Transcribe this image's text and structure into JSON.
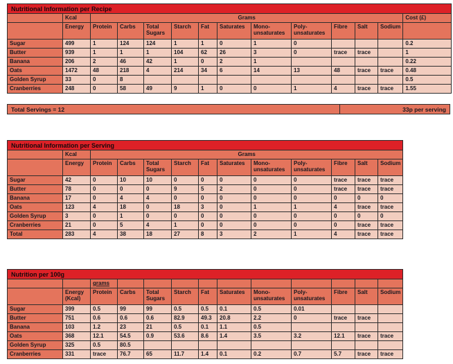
{
  "colors": {
    "title_bar": "#dd2127",
    "header_cell": "#e4745c",
    "data_cell": "#f2cdbf",
    "grid_border": "#2d2d2d",
    "page_bg": "#ffffff"
  },
  "tables": [
    {
      "title": "Nutritional Information per Recipe",
      "kcal_label": "Kcal",
      "grams_label": "Grams",
      "grams_underline": false,
      "cost_label": "Cost (£)",
      "columns": [
        "Energy",
        "Protein",
        "Carbs",
        "Total Sugars",
        "Starch",
        "Fat",
        "Saturates",
        "Mono-unsaturates",
        "Poly-unsaturates",
        "Fibre",
        "Salt",
        "Sodium"
      ],
      "rows": [
        {
          "label": "Sugar",
          "values": [
            "499",
            "1",
            "124",
            "124",
            "1",
            "1",
            "0",
            "1",
            "0",
            "",
            "",
            "",
            "0.2"
          ]
        },
        {
          "label": "Butter",
          "values": [
            "939",
            "1",
            "1",
            "1",
            "104",
            "62",
            "26",
            "3",
            "0",
            "trace",
            "trace",
            "",
            "1"
          ]
        },
        {
          "label": "Banana",
          "values": [
            "206",
            "2",
            "46",
            "42",
            "1",
            "0",
            "2",
            "1",
            "",
            "",
            "",
            "",
            "0.22"
          ]
        },
        {
          "label": "Oats",
          "values": [
            "1472",
            "48",
            "218",
            "4",
            "214",
            "34",
            "6",
            "14",
            "13",
            "48",
            "trace",
            "trace",
            "0.48"
          ]
        },
        {
          "label": "Golden Syrup",
          "values": [
            "33",
            "0",
            "8",
            "",
            "",
            "",
            "",
            "",
            "",
            "",
            "",
            "",
            "0.5"
          ]
        },
        {
          "label": "Cranberries",
          "values": [
            "248",
            "0",
            "58",
            "49",
            "9",
            "1",
            "0",
            "0",
            "1",
            "4",
            "trace",
            "trace",
            "1.55"
          ]
        }
      ]
    },
    {
      "title": "Nutritional Information per Serving",
      "kcal_label": "Kcal",
      "grams_label": "Grams",
      "grams_underline": false,
      "cost_label": null,
      "columns": [
        "Energy",
        "Protein",
        "Carbs",
        "Total Sugars",
        "Starch",
        "Fat",
        "Saturates",
        "Mono-unsaturates",
        "Poly-unsaturates",
        "Fibre",
        "Salt",
        "Sodium"
      ],
      "rows": [
        {
          "label": "Sugar",
          "values": [
            "42",
            "0",
            "10",
            "10",
            "0",
            "0",
            "0",
            "0",
            "0",
            "trace",
            "trace",
            "trace"
          ]
        },
        {
          "label": "Butter",
          "values": [
            "78",
            "0",
            "0",
            "0",
            "9",
            "5",
            "2",
            "0",
            "0",
            "trace",
            "trace",
            "trace"
          ]
        },
        {
          "label": "Banana",
          "values": [
            "17",
            "0",
            "4",
            "4",
            "0",
            "0",
            "0",
            "0",
            "0",
            "0",
            "0",
            "0"
          ]
        },
        {
          "label": "Oats",
          "values": [
            "123",
            "4",
            "18",
            "0",
            "18",
            "3",
            "0",
            "1",
            "1",
            "4",
            "trace",
            "trace"
          ]
        },
        {
          "label": "Golden Syrup",
          "values": [
            "3",
            "0",
            "1",
            "0",
            "0",
            "0",
            "0",
            "0",
            "0",
            "0",
            "0",
            "0"
          ]
        },
        {
          "label": "Cranberries",
          "values": [
            "21",
            "0",
            "5",
            "4",
            "1",
            "0",
            "0",
            "0",
            "0",
            "0",
            "trace",
            "trace"
          ]
        },
        {
          "label": "Total",
          "values": [
            "283",
            "4",
            "38",
            "18",
            "27",
            "8",
            "3",
            "2",
            "1",
            "4",
            "trace",
            "trace"
          ]
        }
      ]
    },
    {
      "title": "Nutrition per 100g",
      "kcal_label": null,
      "grams_label": "grams",
      "grams_underline": true,
      "cost_label": null,
      "columns": [
        "Energy (Kcal)",
        "Protein",
        "Carbs",
        "Total Sugars",
        "Starch",
        "Fat",
        "Saturates",
        "Mono-unsaturates",
        "Poly-unsaturates",
        "Fibre",
        "Salt",
        "Sodium"
      ],
      "rows": [
        {
          "label": "Sugar",
          "values": [
            "399",
            "0.5",
            "99",
            "99",
            "0.5",
            "0.5",
            "0.1",
            "0.5",
            "0.01",
            "",
            "",
            ""
          ]
        },
        {
          "label": "Butter",
          "values": [
            "751",
            "0.6",
            "0.6",
            "0.6",
            "82.9",
            "49.3",
            "20.8",
            "2.2",
            "0",
            "trace",
            "trace",
            ""
          ]
        },
        {
          "label": "Banana",
          "values": [
            "103",
            "1.2",
            "23",
            "21",
            "0.5",
            "0.1",
            "1.1",
            "0.5",
            "",
            "",
            "",
            ""
          ]
        },
        {
          "label": "Oats",
          "values": [
            "368",
            "12.1",
            "54.5",
            "0.9",
            "53.6",
            "8.6",
            "1.4",
            "3.5",
            "3.2",
            "12.1",
            "trace",
            "trace"
          ]
        },
        {
          "label": "Golden Syrup",
          "values": [
            "325",
            "0.5",
            "80.5",
            "",
            "",
            "",
            "",
            "",
            "",
            "",
            "",
            ""
          ]
        },
        {
          "label": "Cranberries",
          "values": [
            "331",
            "trace",
            "76.7",
            "65",
            "11.7",
            "1.4",
            "0.1",
            "0.2",
            "0.7",
            "5.7",
            "trace",
            "trace"
          ]
        }
      ]
    }
  ],
  "servings_bar": {
    "left_text": "Total Servings = 12",
    "right_text": "33p per serving"
  }
}
